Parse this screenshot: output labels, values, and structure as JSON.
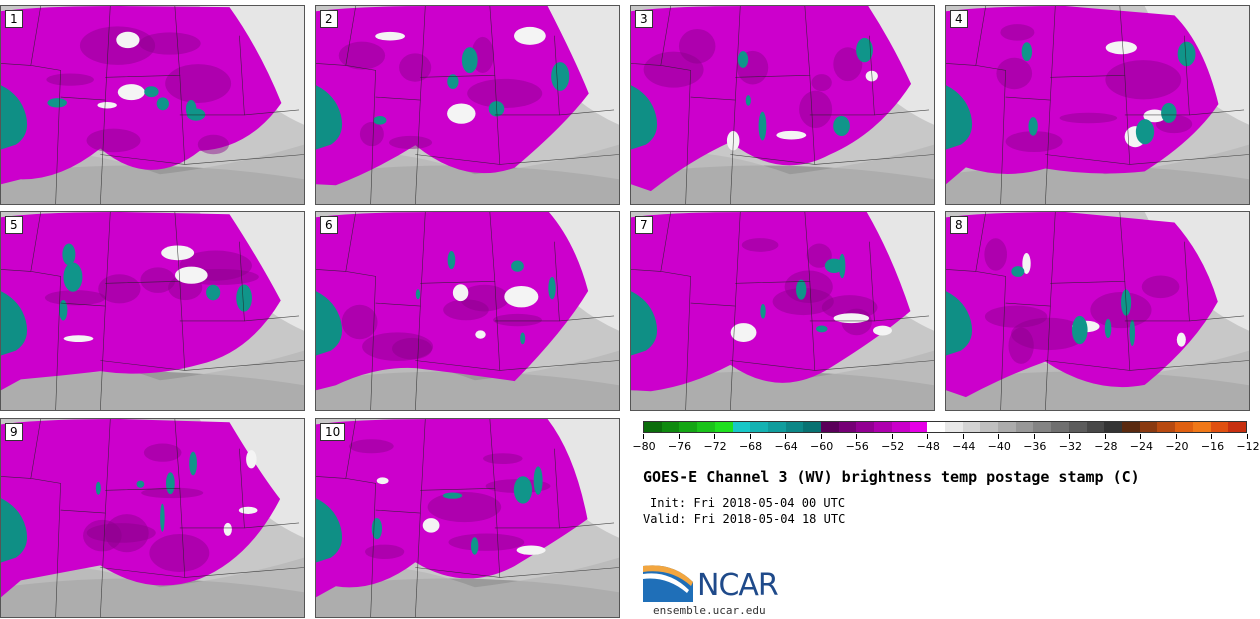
{
  "panels": [
    "1",
    "2",
    "3",
    "4",
    "5",
    "6",
    "7",
    "8",
    "9",
    "10"
  ],
  "colorbar": {
    "colors": [
      "#0b6d0b",
      "#0f8a0f",
      "#14a614",
      "#1ac31a",
      "#1fe01f",
      "#18c8c8",
      "#14b2b2",
      "#109d9d",
      "#0c8787",
      "#087272",
      "#5a005a",
      "#760076",
      "#920092",
      "#ae00ae",
      "#ca00ca",
      "#e600e6",
      "#ffffff",
      "#e8e8e8",
      "#d4d4d4",
      "#c0c0c0",
      "#acacac",
      "#989898",
      "#848484",
      "#707070",
      "#5c5c5c",
      "#484848",
      "#343434",
      "#5a2a10",
      "#8a3a10",
      "#b84a10",
      "#e06010",
      "#f07818",
      "#e05010",
      "#c83010"
    ],
    "tick_labels": [
      "-80",
      "-76",
      "-72",
      "-68",
      "-64",
      "-60",
      "-56",
      "-52",
      "-48",
      "-44",
      "-40",
      "-36",
      "-32",
      "-28",
      "-24",
      "-20",
      "-16",
      "-12"
    ]
  },
  "title": "GOES-E Channel 3 (WV) brightness temp postage stamp (C)",
  "init": "Init: Fri 2018-05-04 00 UTC",
  "valid": "Valid: Fri 2018-05-04 18 UTC",
  "logo": {
    "name": "NCAR",
    "url": "ensemble.ucar.edu"
  }
}
